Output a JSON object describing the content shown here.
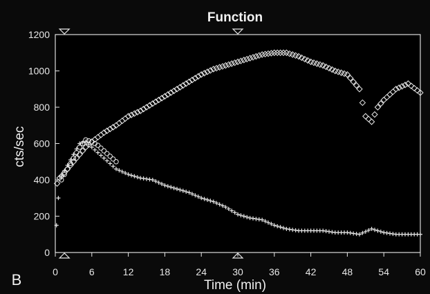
{
  "chart_data": {
    "type": "scatter",
    "title": "Function",
    "xlabel": "Time (min)",
    "ylabel": "cts/sec",
    "panel_label": "B",
    "xlim": [
      0,
      60
    ],
    "ylim": [
      0,
      1200
    ],
    "xticks": [
      "0",
      "6",
      "12",
      "18",
      "24",
      "30",
      "36",
      "42",
      "48",
      "54",
      "60"
    ],
    "yticks": [
      "0",
      "200",
      "400",
      "600",
      "800",
      "1000",
      "1200"
    ],
    "markers_x": [
      1.5,
      30
    ],
    "series": [
      {
        "marker": "diamond",
        "x": [
          0.3,
          0.7,
          1,
          1.5,
          2,
          3,
          4,
          5,
          6,
          8,
          10,
          12,
          14,
          16,
          18,
          20,
          22,
          24,
          26,
          28,
          30,
          32,
          34,
          36,
          38,
          40,
          42,
          44,
          46,
          48,
          50,
          51,
          52,
          53,
          54,
          56,
          58,
          60
        ],
        "y": [
          380,
          410,
          420,
          440,
          460,
          500,
          540,
          580,
          610,
          660,
          700,
          750,
          780,
          820,
          860,
          900,
          940,
          980,
          1010,
          1030,
          1050,
          1070,
          1090,
          1100,
          1100,
          1080,
          1050,
          1030,
          1000,
          980,
          900,
          750,
          720,
          800,
          840,
          900,
          930,
          880
        ]
      },
      {
        "marker": "circle",
        "x": [
          1,
          1.5,
          2,
          3,
          4,
          5,
          6,
          7,
          8,
          9,
          10
        ],
        "y": [
          400,
          430,
          460,
          520,
          580,
          620,
          610,
          590,
          560,
          530,
          500
        ]
      },
      {
        "marker": "plus",
        "x": [
          0.2,
          0.5,
          1,
          2,
          3,
          4,
          5,
          6,
          8,
          10,
          12,
          14,
          16,
          18,
          20,
          22,
          24,
          26,
          28,
          30,
          32,
          34,
          36,
          38,
          40,
          42,
          44,
          46,
          48,
          50,
          52,
          54,
          56,
          58,
          60
        ],
        "y": [
          150,
          300,
          420,
          480,
          540,
          600,
          610,
          580,
          520,
          460,
          430,
          410,
          400,
          370,
          350,
          330,
          300,
          280,
          250,
          210,
          190,
          180,
          150,
          130,
          120,
          120,
          120,
          110,
          110,
          100,
          130,
          110,
          100,
          100,
          100
        ]
      }
    ],
    "colors": {
      "background": "#0a0a0a",
      "plot": "#000000",
      "ink": "#e8e8e8"
    }
  }
}
